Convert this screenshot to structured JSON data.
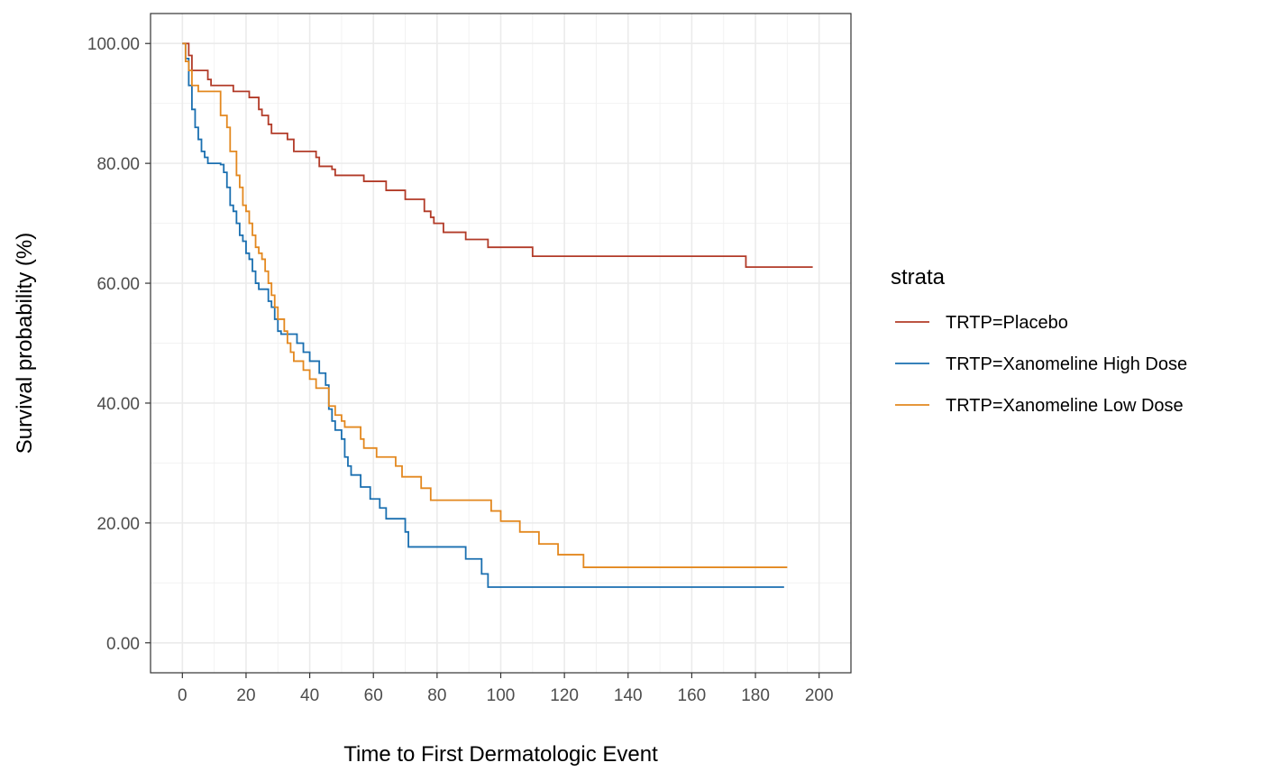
{
  "chart_data": {
    "type": "line",
    "step": true,
    "xlabel": "Time to First Dermatologic Event",
    "ylabel": "Survival probability (%)",
    "xlim": [
      -10,
      210
    ],
    "ylim": [
      -5,
      105
    ],
    "x_ticks": [
      0,
      20,
      40,
      60,
      80,
      100,
      120,
      140,
      160,
      180,
      200
    ],
    "y_ticks": [
      0,
      20,
      40,
      60,
      80,
      100
    ],
    "y_tick_labels": [
      "0.00",
      "20.00",
      "40.00",
      "60.00",
      "80.00",
      "100.00"
    ],
    "grid": true,
    "legend": {
      "title": "strata",
      "position": "right"
    },
    "series": [
      {
        "name": "TRTP=Placebo",
        "color": "#b23b28",
        "points": [
          [
            0,
            100
          ],
          [
            2,
            98
          ],
          [
            3,
            95.5
          ],
          [
            8,
            94
          ],
          [
            9,
            93
          ],
          [
            16,
            92
          ],
          [
            21,
            91
          ],
          [
            24,
            89
          ],
          [
            25,
            88
          ],
          [
            27,
            86.5
          ],
          [
            28,
            85
          ],
          [
            33,
            84
          ],
          [
            35,
            82
          ],
          [
            42,
            81
          ],
          [
            43,
            79.5
          ],
          [
            47,
            79
          ],
          [
            48,
            78
          ],
          [
            57,
            77
          ],
          [
            64,
            75.5
          ],
          [
            70,
            74
          ],
          [
            76,
            72
          ],
          [
            78,
            71
          ],
          [
            79,
            70
          ],
          [
            82,
            68.5
          ],
          [
            89,
            67.3
          ],
          [
            96,
            66
          ],
          [
            110,
            64.5
          ],
          [
            177,
            62.7
          ],
          [
            198,
            62.7
          ]
        ]
      },
      {
        "name": "TRTP=Xanomeline High Dose",
        "color": "#1a6fb0",
        "points": [
          [
            0,
            100
          ],
          [
            1,
            97.5
          ],
          [
            2,
            93
          ],
          [
            3,
            89
          ],
          [
            4,
            86
          ],
          [
            5,
            84
          ],
          [
            6,
            82
          ],
          [
            7,
            81
          ],
          [
            8,
            80
          ],
          [
            12,
            79.8
          ],
          [
            13,
            78.5
          ],
          [
            14,
            76
          ],
          [
            15,
            73
          ],
          [
            16,
            72
          ],
          [
            17,
            70
          ],
          [
            18,
            68
          ],
          [
            19,
            67
          ],
          [
            20,
            65
          ],
          [
            21,
            64
          ],
          [
            22,
            62
          ],
          [
            23,
            60
          ],
          [
            24,
            59
          ],
          [
            27,
            57
          ],
          [
            28,
            56
          ],
          [
            29,
            54
          ],
          [
            30,
            52
          ],
          [
            31,
            51.5
          ],
          [
            33,
            51.5
          ],
          [
            36,
            50
          ],
          [
            38,
            48.5
          ],
          [
            40,
            47
          ],
          [
            43,
            45
          ],
          [
            45,
            43
          ],
          [
            46,
            39
          ],
          [
            47,
            37
          ],
          [
            48,
            35.5
          ],
          [
            50,
            34
          ],
          [
            51,
            31
          ],
          [
            52,
            29.5
          ],
          [
            53,
            28
          ],
          [
            56,
            26
          ],
          [
            59,
            24
          ],
          [
            62,
            22.5
          ],
          [
            64,
            20.7
          ],
          [
            70,
            18.5
          ],
          [
            71,
            16
          ],
          [
            89,
            14
          ],
          [
            94,
            11.5
          ],
          [
            96,
            9.3
          ],
          [
            189,
            9.3
          ]
        ]
      },
      {
        "name": "TRTP=Xanomeline Low Dose",
        "color": "#e3881f",
        "points": [
          [
            0,
            100
          ],
          [
            1,
            97
          ],
          [
            2,
            95.5
          ],
          [
            3,
            93
          ],
          [
            5,
            92
          ],
          [
            12,
            88
          ],
          [
            14,
            86
          ],
          [
            15,
            82
          ],
          [
            17,
            78
          ],
          [
            18,
            76
          ],
          [
            19,
            73
          ],
          [
            20,
            72
          ],
          [
            21,
            70
          ],
          [
            22,
            68
          ],
          [
            23,
            66
          ],
          [
            24,
            65
          ],
          [
            25,
            64
          ],
          [
            26,
            62
          ],
          [
            27,
            60
          ],
          [
            28,
            58
          ],
          [
            29,
            56
          ],
          [
            30,
            54
          ],
          [
            32,
            52
          ],
          [
            33,
            50
          ],
          [
            34,
            48.5
          ],
          [
            35,
            47
          ],
          [
            38,
            45.5
          ],
          [
            40,
            44
          ],
          [
            42,
            42.5
          ],
          [
            46,
            39.5
          ],
          [
            48,
            38
          ],
          [
            50,
            37
          ],
          [
            51,
            36
          ],
          [
            56,
            34
          ],
          [
            57,
            32.5
          ],
          [
            61,
            31
          ],
          [
            67,
            29.5
          ],
          [
            69,
            27.7
          ],
          [
            75,
            25.8
          ],
          [
            78,
            23.8
          ],
          [
            97,
            22
          ],
          [
            100,
            20.3
          ],
          [
            106,
            18.5
          ],
          [
            112,
            16.5
          ],
          [
            118,
            14.7
          ],
          [
            126,
            12.6
          ],
          [
            190,
            12.6
          ]
        ]
      }
    ]
  }
}
